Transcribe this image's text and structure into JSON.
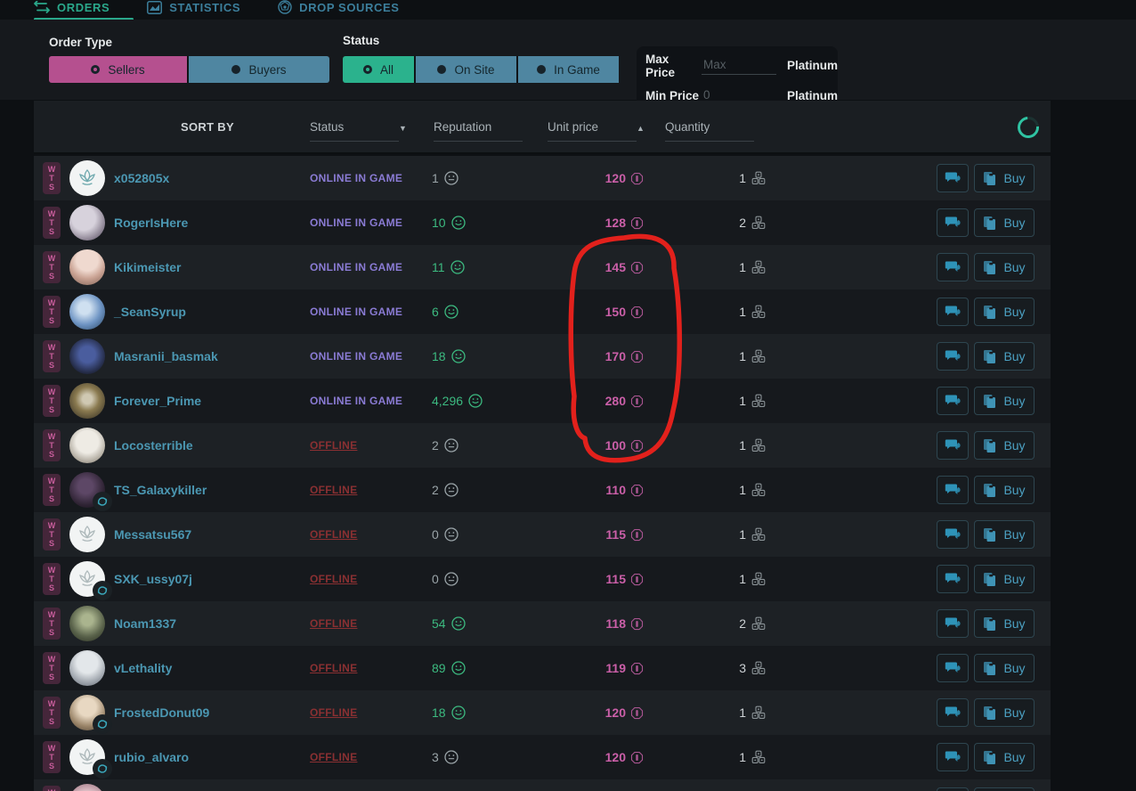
{
  "nav": {
    "tabs": [
      {
        "label": "ORDERS",
        "icon": "transfer-icon",
        "active": true
      },
      {
        "label": "STATISTICS",
        "icon": "chart-icon",
        "active": false
      },
      {
        "label": "DROP SOURCES",
        "icon": "drop-sources-icon",
        "active": false
      }
    ]
  },
  "filters": {
    "order_type": {
      "label": "Order Type",
      "options": [
        {
          "label": "Sellers",
          "selected": true,
          "color": "#b5508f"
        },
        {
          "label": "Buyers",
          "selected": false,
          "color": "#4f86a1"
        }
      ]
    },
    "status": {
      "label": "Status",
      "options": [
        {
          "label": "All",
          "selected": true,
          "color": "#2bb28d"
        },
        {
          "label": "On Site",
          "selected": false,
          "color": "#4f86a1"
        },
        {
          "label": "In Game",
          "selected": false,
          "color": "#4f86a1"
        }
      ]
    },
    "price": {
      "max_label": "Max Price",
      "max_placeholder": "Max",
      "max_value": "",
      "min_label": "Min Price",
      "min_value": "0",
      "unit": "Platinum"
    }
  },
  "table": {
    "sort_by_label": "SORT BY",
    "columns": [
      {
        "label": "Status",
        "arrow": "down"
      },
      {
        "label": "Reputation",
        "arrow": ""
      },
      {
        "label": "Unit price",
        "arrow": "up"
      },
      {
        "label": "Quantity",
        "arrow": ""
      }
    ],
    "loading_spinner": true,
    "rows": [
      {
        "badge": "WTS",
        "name": "x052805x",
        "status": "ONLINE IN GAME",
        "status_type": "online",
        "reputation": "1",
        "mood": "neutral",
        "price": "120",
        "quantity": "1",
        "avatar": "lotus-teal",
        "platform_badge": false
      },
      {
        "badge": "WTS",
        "name": "RogerIsHere",
        "status": "ONLINE IN GAME",
        "status_type": "online",
        "reputation": "10",
        "mood": "happy",
        "price": "128",
        "quantity": "2",
        "avatar": "creature",
        "platform_badge": false
      },
      {
        "badge": "WTS",
        "name": "Kikimeister",
        "status": "ONLINE IN GAME",
        "status_type": "online",
        "reputation": "11",
        "mood": "happy",
        "price": "145",
        "quantity": "1",
        "avatar": "shades",
        "platform_badge": false
      },
      {
        "badge": "WTS",
        "name": "_SeanSyrup",
        "status": "ONLINE IN GAME",
        "status_type": "online",
        "reputation": "6",
        "mood": "happy",
        "price": "150",
        "quantity": "1",
        "avatar": "planet",
        "platform_badge": false
      },
      {
        "badge": "WTS",
        "name": "Masranii_basmak",
        "status": "ONLINE IN GAME",
        "status_type": "online",
        "reputation": "18",
        "mood": "happy",
        "price": "170",
        "quantity": "1",
        "avatar": "pixelcat",
        "platform_badge": false
      },
      {
        "badge": "WTS",
        "name": "Forever_Prime",
        "status": "ONLINE IN GAME",
        "status_type": "online",
        "reputation": "4,296",
        "mood": "happy",
        "price": "280",
        "quantity": "1",
        "avatar": "ornate",
        "platform_badge": false
      },
      {
        "badge": "WTS",
        "name": "Locosterrible",
        "status": "OFFLINE",
        "status_type": "offline",
        "reputation": "2",
        "mood": "neutral",
        "price": "100",
        "quantity": "1",
        "avatar": "wolf",
        "platform_badge": false
      },
      {
        "badge": "WTS",
        "name": "TS_Galaxykiller",
        "status": "OFFLINE",
        "status_type": "offline",
        "reputation": "2",
        "mood": "neutral",
        "price": "110",
        "quantity": "1",
        "avatar": "darkfig",
        "platform_badge": true
      },
      {
        "badge": "WTS",
        "name": "Messatsu567",
        "status": "OFFLINE",
        "status_type": "offline",
        "reputation": "0",
        "mood": "neutral",
        "price": "115",
        "quantity": "1",
        "avatar": "lotus-grey",
        "platform_badge": false
      },
      {
        "badge": "WTS",
        "name": "SXK_ussy07j",
        "status": "OFFLINE",
        "status_type": "offline",
        "reputation": "0",
        "mood": "neutral",
        "price": "115",
        "quantity": "1",
        "avatar": "lotus-grey",
        "platform_badge": true
      },
      {
        "badge": "WTS",
        "name": "Noam1337",
        "status": "OFFLINE",
        "status_type": "offline",
        "reputation": "54",
        "mood": "happy",
        "price": "118",
        "quantity": "2",
        "avatar": "forest",
        "platform_badge": false
      },
      {
        "badge": "WTS",
        "name": "vLethality",
        "status": "OFFLINE",
        "status_type": "offline",
        "reputation": "89",
        "mood": "happy",
        "price": "119",
        "quantity": "3",
        "avatar": "anime-grey",
        "platform_badge": false
      },
      {
        "badge": "WTS",
        "name": "FrostedDonut09",
        "status": "OFFLINE",
        "status_type": "offline",
        "reputation": "18",
        "mood": "happy",
        "price": "120",
        "quantity": "1",
        "avatar": "anime-tan",
        "platform_badge": true
      },
      {
        "badge": "WTS",
        "name": "rubio_alvaro",
        "status": "OFFLINE",
        "status_type": "offline",
        "reputation": "3",
        "mood": "neutral",
        "price": "120",
        "quantity": "1",
        "avatar": "lotus-grey",
        "platform_badge": true
      },
      {
        "badge": "WTS",
        "name": "",
        "status": "",
        "status_type": "online",
        "reputation": "",
        "mood": "none",
        "price": "",
        "quantity": "",
        "avatar": "pink",
        "platform_badge": false,
        "partial": true
      }
    ]
  },
  "row_actions": {
    "chat_icon": "chat-icon",
    "buy_label": "Buy",
    "buy_icon": "copy-icon"
  },
  "annotation": {
    "type": "hand-drawn-circle",
    "color": "#e2211c",
    "target": "unit prices 145, 150, 170, 280, 100 (rows 3-7)"
  },
  "colors": {
    "accent_teal": "#2aa88b",
    "tab_blue": "#3c7f9c",
    "seller_pink": "#b5508f",
    "buyer_blue": "#4f86a1",
    "all_green": "#2bb28d",
    "online_purple": "#8a7bd4",
    "offline_red": "#8a3032",
    "price_pink": "#ca5fa8",
    "rep_green": "#3cba80",
    "rep_grey": "#9aa4a8",
    "username_teal": "#4b97b2",
    "button_teal": "#4ba0c2",
    "spinner_teal": "#2fc3a2",
    "row_light": "#1d2125",
    "row_dark": "#16191d"
  }
}
